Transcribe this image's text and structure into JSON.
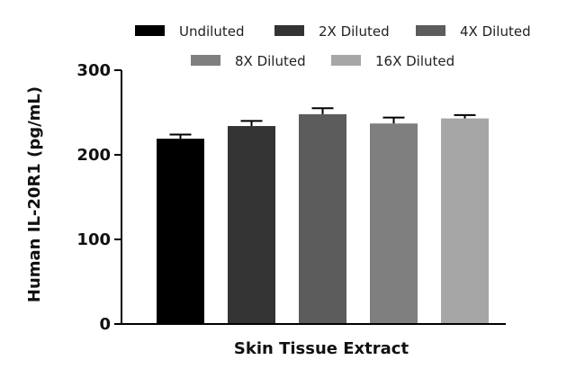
{
  "chart_data": {
    "type": "bar",
    "title": "",
    "xlabel": "Skin Tissue Extract",
    "ylabel": "Human IL-20R1 (pg/mL)",
    "ylim": [
      0,
      300
    ],
    "yticks": [
      0,
      100,
      200,
      300
    ],
    "grid": false,
    "legend_position": "top",
    "series": [
      {
        "name": "Undiluted",
        "value": 219,
        "error": 5,
        "color": "#000000"
      },
      {
        "name": "2X Diluted",
        "value": 234,
        "error": 6,
        "color": "#333333"
      },
      {
        "name": "4X Diluted",
        "value": 248,
        "error": 7,
        "color": "#5c5c5c"
      },
      {
        "name": "8X Diluted",
        "value": 237,
        "error": 7,
        "color": "#7f7f7f"
      },
      {
        "name": "16X Diluted",
        "value": 243,
        "error": 4,
        "color": "#a6a6a6"
      }
    ]
  }
}
